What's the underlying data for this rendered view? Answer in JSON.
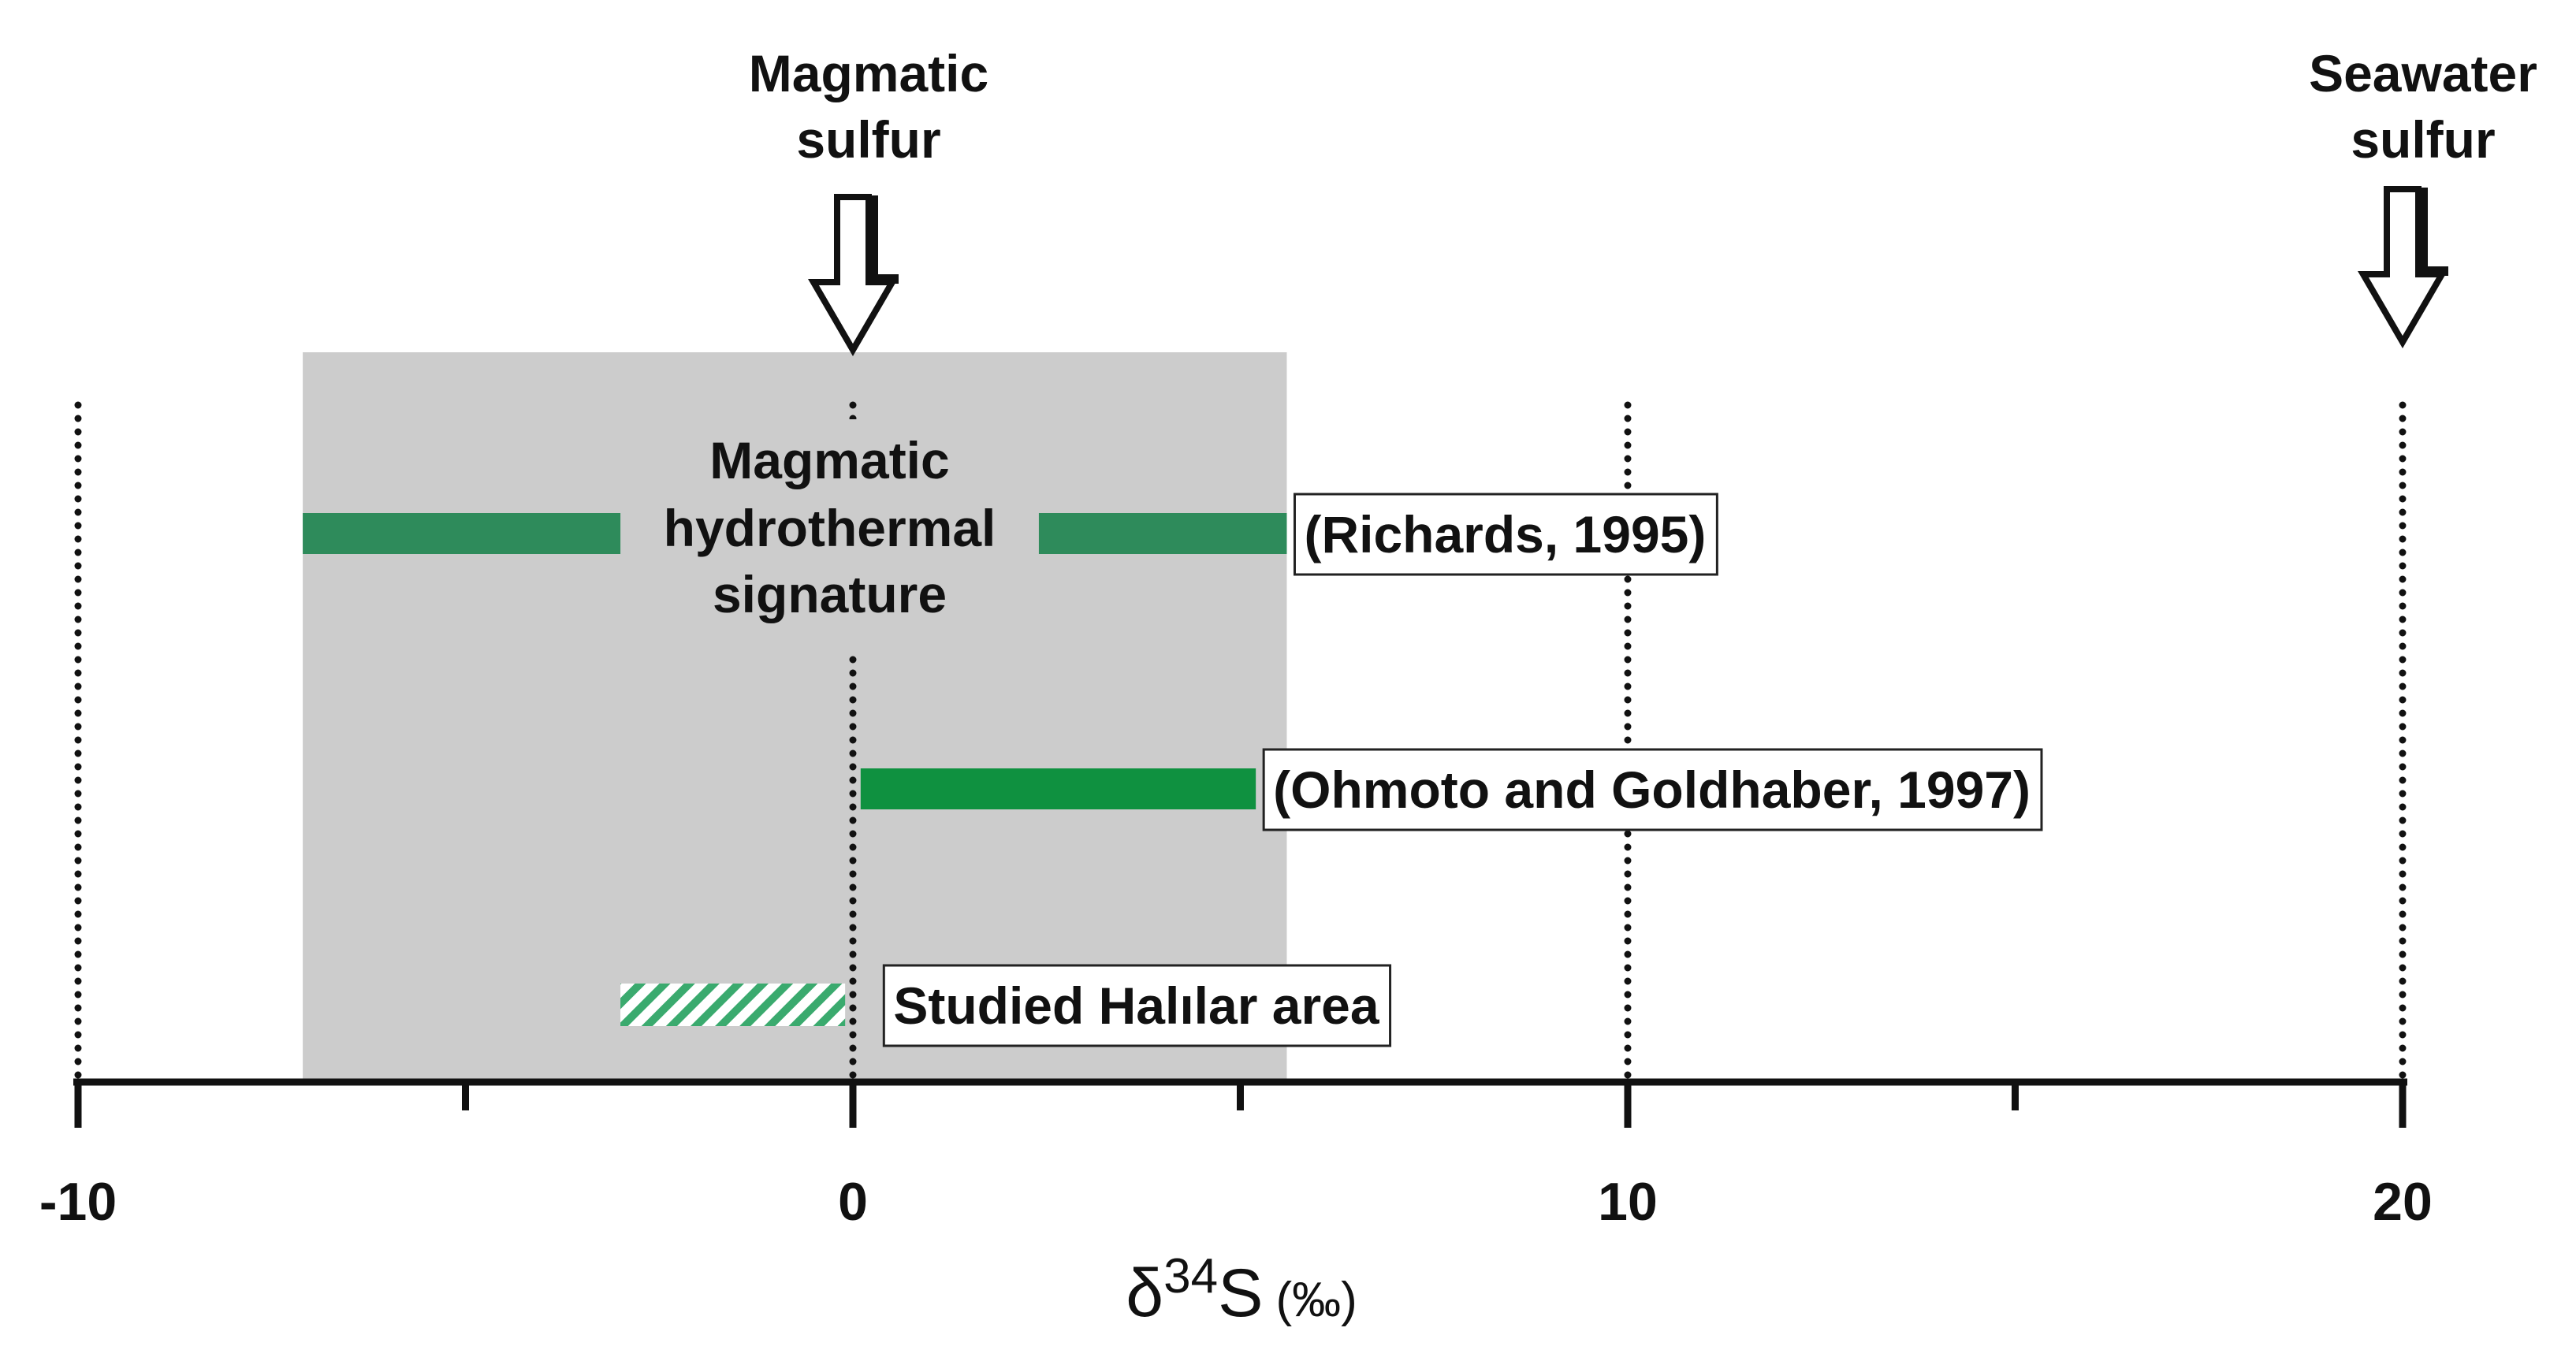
{
  "chart_data": {
    "type": "range",
    "xlabel": "δ34S (‰)",
    "xlabel_parts": {
      "delta": "δ",
      "sup": "34",
      "s": "S",
      "unit": "(‰)"
    },
    "xlim": [
      -10,
      20
    ],
    "major_ticks": [
      -10,
      0,
      10,
      20
    ],
    "minor_ticks": [
      -5,
      5,
      15
    ],
    "tick_labels": [
      "-10",
      "0",
      "10",
      "20"
    ],
    "dotted_gridlines_at": [
      -10,
      0,
      10,
      20
    ],
    "shaded_region": {
      "x": [
        -7.1,
        5.6
      ],
      "label_lines": [
        "Magmatic",
        "hydrothermal",
        "signature"
      ],
      "color": "#cccccc"
    },
    "ranges": [
      {
        "label": "(Richards, 1995)",
        "x": [
          -7.1,
          5.6
        ],
        "color": "#2e8b5b",
        "style": "solid"
      },
      {
        "label": "(Ohmoto and Goldhaber, 1997)",
        "x": [
          0.1,
          5.2
        ],
        "color": "#0f9140",
        "style": "solid"
      },
      {
        "label": "Studied Halılar area",
        "x": [
          -3.0,
          -0.1
        ],
        "color": "#3aaa6e",
        "style": "hatched"
      }
    ],
    "markers": [
      {
        "label_lines": [
          "Magmatic",
          "sulfur"
        ],
        "x": 0
      },
      {
        "label_lines": [
          "Seawater",
          "sulfur"
        ],
        "x": 20
      }
    ]
  }
}
